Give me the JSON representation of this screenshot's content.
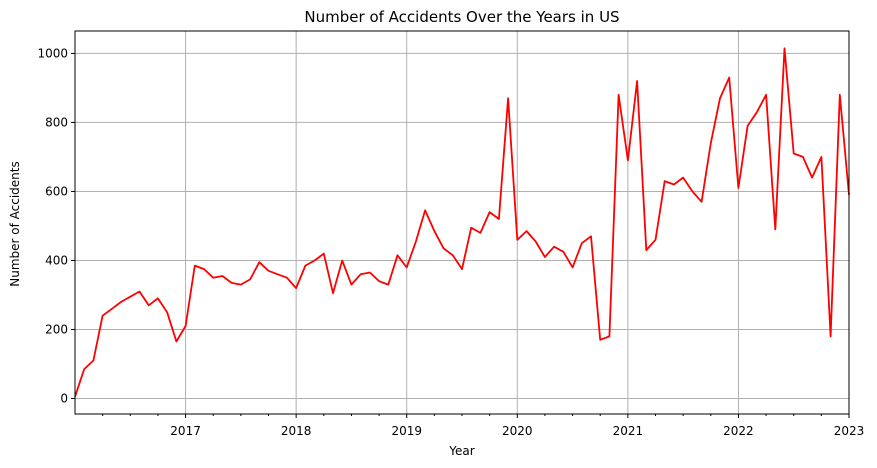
{
  "chart_data": {
    "type": "line",
    "title": "Number of Accidents Over the Years in US",
    "xlabel": "Year",
    "ylabel": "Number of Accidents",
    "xlim": [
      "2016-01",
      "2023-01"
    ],
    "ylim": [
      -45,
      1065
    ],
    "grid": true,
    "x_ticks": [
      "2017",
      "2018",
      "2019",
      "2020",
      "2021",
      "2022",
      "2023"
    ],
    "y_ticks": [
      0,
      200,
      400,
      600,
      800,
      1000
    ],
    "series": [
      {
        "color": "#ff0000",
        "x": [
          "2016-01",
          "2016-02",
          "2016-03",
          "2016-04",
          "2016-05",
          "2016-06",
          "2016-07",
          "2016-08",
          "2016-09",
          "2016-10",
          "2016-11",
          "2016-12",
          "2017-01",
          "2017-02",
          "2017-03",
          "2017-04",
          "2017-05",
          "2017-06",
          "2017-07",
          "2017-08",
          "2017-09",
          "2017-10",
          "2017-11",
          "2017-12",
          "2018-01",
          "2018-02",
          "2018-03",
          "2018-04",
          "2018-05",
          "2018-06",
          "2018-07",
          "2018-08",
          "2018-09",
          "2018-10",
          "2018-11",
          "2018-12",
          "2019-01",
          "2019-02",
          "2019-03",
          "2019-04",
          "2019-05",
          "2019-06",
          "2019-07",
          "2019-08",
          "2019-09",
          "2019-10",
          "2019-11",
          "2019-12",
          "2020-01",
          "2020-02",
          "2020-03",
          "2020-04",
          "2020-05",
          "2020-06",
          "2020-07",
          "2020-08",
          "2020-09",
          "2020-10",
          "2020-11",
          "2020-12",
          "2021-01",
          "2021-02",
          "2021-03",
          "2021-04",
          "2021-05",
          "2021-06",
          "2021-07",
          "2021-08",
          "2021-09",
          "2021-10",
          "2021-11",
          "2021-12",
          "2022-01",
          "2022-02",
          "2022-03",
          "2022-04",
          "2022-05",
          "2022-06",
          "2022-07",
          "2022-08",
          "2022-09",
          "2022-10",
          "2022-11",
          "2022-12",
          "2023-01"
        ],
        "y": [
          5,
          85,
          110,
          240,
          260,
          280,
          295,
          310,
          270,
          290,
          250,
          165,
          210,
          385,
          375,
          350,
          355,
          335,
          330,
          345,
          395,
          370,
          360,
          350,
          320,
          385,
          400,
          420,
          305,
          400,
          330,
          360,
          365,
          340,
          330,
          415,
          380,
          455,
          545,
          485,
          435,
          415,
          375,
          495,
          480,
          540,
          520,
          870,
          460,
          485,
          455,
          410,
          440,
          425,
          380,
          450,
          470,
          170,
          180,
          880,
          690,
          920,
          430,
          460,
          630,
          620,
          640,
          600,
          570,
          740,
          870,
          930,
          610,
          790,
          830,
          880,
          490,
          1015,
          710,
          700,
          640,
          700,
          180,
          880,
          590
        ]
      }
    ]
  }
}
